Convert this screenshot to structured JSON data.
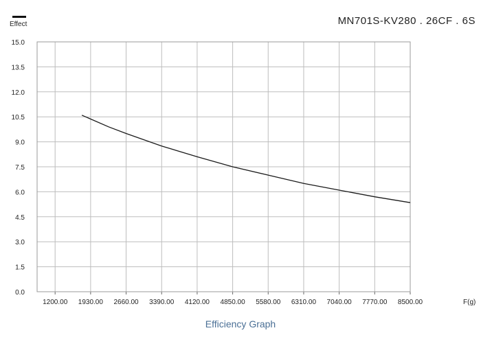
{
  "chart_data": {
    "type": "line",
    "title": "MN701S-KV280 . 26CF . 6S",
    "legend": {
      "label": "Effect",
      "placement": "top-left"
    },
    "xlabel": "F(g)",
    "ylabel": "",
    "caption": "Efficiency Graph",
    "xlim": [
      830,
      8500
    ],
    "ylim": [
      0,
      15
    ],
    "x_ticks": [
      "1200.00",
      "1930.00",
      "2660.00",
      "3390.00",
      "4120.00",
      "4850.00",
      "5580.00",
      "6310.00",
      "7040.00",
      "7770.00",
      "8500.00"
    ],
    "y_ticks": [
      "15.0",
      "13.5",
      "12.0",
      "10.5",
      "9.0",
      "7.5",
      "6.0",
      "4.5",
      "3.0",
      "1.5",
      "0.0"
    ],
    "grid": true,
    "series": [
      {
        "name": "Effect",
        "color": "#1a1a1a",
        "x": [
          1750,
          2300,
          2660,
          3390,
          4120,
          4850,
          5580,
          6310,
          7040,
          7770,
          8500
        ],
        "y": [
          10.6,
          9.9,
          9.5,
          8.75,
          8.1,
          7.5,
          7.0,
          6.5,
          6.1,
          5.7,
          5.35
        ]
      }
    ]
  }
}
